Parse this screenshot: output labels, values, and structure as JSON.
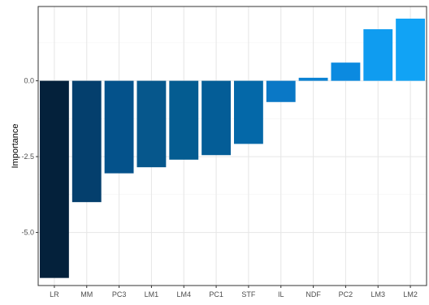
{
  "chart_data": {
    "type": "bar",
    "xlabel": "",
    "ylabel": "Importance",
    "categories": [
      "LR",
      "MM",
      "PC3",
      "LM1",
      "LM4",
      "PC1",
      "STF",
      "IL",
      "NDF",
      "PC2",
      "LM3",
      "LM2"
    ],
    "values": [
      -6.5,
      -4.0,
      -3.05,
      -2.85,
      -2.6,
      -2.45,
      -2.08,
      -0.7,
      0.1,
      0.6,
      1.7,
      2.05
    ],
    "ylim": [
      -6.75,
      2.45
    ],
    "yticks": [
      0.0,
      -2.5,
      -5.0
    ],
    "ytick_labels": [
      "0.0",
      "-2.5",
      "-5.0"
    ],
    "grid": true,
    "legend": "none",
    "bar_colors": [
      "#04213b",
      "#043f6d",
      "#04528b",
      "#06578c",
      "#045c91",
      "#045d97",
      "#0468a8",
      "#0a78c6",
      "#0b82d3",
      "#0b8ae0",
      "#0f9cf0",
      "#11a3f5"
    ]
  }
}
